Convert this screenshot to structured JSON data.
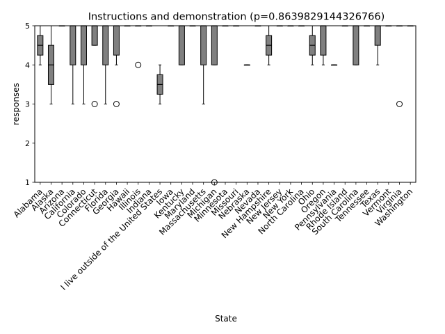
{
  "chart_data": {
    "type": "box",
    "title": "Instructions and demonstration (p=0.8639829144326766)",
    "xlabel": "State",
    "ylabel": "responses",
    "ylim": [
      1,
      5
    ],
    "yticks": [
      "1",
      "2",
      "3",
      "4",
      "5"
    ],
    "box_color": "#808080",
    "median_color": "#000000",
    "grid": false,
    "categories": [
      "Alabama",
      "Alaska",
      "Arizona",
      "California",
      "Colorado",
      "Connecticut",
      "Florida",
      "Georgia",
      "Hawaii",
      "Illinois",
      "Indiana",
      "I live outside of the United States",
      "Iowa",
      "Kentucky",
      "Maryland",
      "Massachusetts",
      "Michigan",
      "Minnesota",
      "Missouri",
      "Nebraska",
      "Nevada",
      "New Hampshire",
      "New Jersey",
      "New York",
      "North Carolina",
      "Ohio",
      "Oregon",
      "Pennsylvania",
      "Rhode Island",
      "South Carolina",
      "Tennessee",
      "Texas",
      "Vermont",
      "Virginia",
      "Washington"
    ],
    "boxes": [
      {
        "q1": 4.25,
        "med": 4.5,
        "q3": 4.75,
        "wlo": 4,
        "whi": 5,
        "fliers": []
      },
      {
        "q1": 3.5,
        "med": 4,
        "q3": 4.5,
        "wlo": 3,
        "whi": 5,
        "fliers": []
      },
      {
        "q1": 5,
        "med": 5,
        "q3": 5,
        "wlo": 5,
        "whi": 5,
        "fliers": []
      },
      {
        "q1": 4,
        "med": 5,
        "q3": 5,
        "wlo": 3,
        "whi": 5,
        "fliers": []
      },
      {
        "q1": 4,
        "med": 5,
        "q3": 5,
        "wlo": 3,
        "whi": 5,
        "fliers": []
      },
      {
        "q1": 4.5,
        "med": 5,
        "q3": 5,
        "wlo": 4.5,
        "whi": 5,
        "fliers": [
          3
        ]
      },
      {
        "q1": 4,
        "med": 5,
        "q3": 5,
        "wlo": 3,
        "whi": 5,
        "fliers": []
      },
      {
        "q1": 4.25,
        "med": 5,
        "q3": 5,
        "wlo": 4,
        "whi": 5,
        "fliers": [
          3
        ]
      },
      {
        "q1": 5,
        "med": 5,
        "q3": 5,
        "wlo": 5,
        "whi": 5,
        "fliers": []
      },
      {
        "q1": 5,
        "med": 5,
        "q3": 5,
        "wlo": 5,
        "whi": 5,
        "fliers": [
          4
        ]
      },
      {
        "q1": 5,
        "med": 5,
        "q3": 5,
        "wlo": 5,
        "whi": 5,
        "fliers": []
      },
      {
        "q1": 3.25,
        "med": 3.5,
        "q3": 3.75,
        "wlo": 3,
        "whi": 4,
        "fliers": []
      },
      {
        "q1": 5,
        "med": 5,
        "q3": 5,
        "wlo": 5,
        "whi": 5,
        "fliers": []
      },
      {
        "q1": 4,
        "med": 5,
        "q3": 5,
        "wlo": 4,
        "whi": 5,
        "fliers": []
      },
      {
        "q1": 5,
        "med": 5,
        "q3": 5,
        "wlo": 5,
        "whi": 5,
        "fliers": []
      },
      {
        "q1": 4,
        "med": 5,
        "q3": 5,
        "wlo": 3,
        "whi": 5,
        "fliers": []
      },
      {
        "q1": 4,
        "med": 5,
        "q3": 5,
        "wlo": 4,
        "whi": 5,
        "fliers": [
          1
        ]
      },
      {
        "q1": 5,
        "med": 5,
        "q3": 5,
        "wlo": 5,
        "whi": 5,
        "fliers": []
      },
      {
        "q1": 5,
        "med": 5,
        "q3": 5,
        "wlo": 5,
        "whi": 5,
        "fliers": []
      },
      {
        "q1": 4,
        "med": 4,
        "q3": 4,
        "wlo": 4,
        "whi": 4,
        "fliers": []
      },
      {
        "q1": 5,
        "med": 5,
        "q3": 5,
        "wlo": 5,
        "whi": 5,
        "fliers": []
      },
      {
        "q1": 4.25,
        "med": 4.5,
        "q3": 4.75,
        "wlo": 4,
        "whi": 5,
        "fliers": []
      },
      {
        "q1": 5,
        "med": 5,
        "q3": 5,
        "wlo": 5,
        "whi": 5,
        "fliers": []
      },
      {
        "q1": 5,
        "med": 5,
        "q3": 5,
        "wlo": 5,
        "whi": 5,
        "fliers": []
      },
      {
        "q1": 5,
        "med": 5,
        "q3": 5,
        "wlo": 5,
        "whi": 5,
        "fliers": []
      },
      {
        "q1": 4.25,
        "med": 4.5,
        "q3": 4.75,
        "wlo": 4,
        "whi": 5,
        "fliers": []
      },
      {
        "q1": 4.25,
        "med": 5,
        "q3": 5,
        "wlo": 4,
        "whi": 5,
        "fliers": []
      },
      {
        "q1": 4,
        "med": 4,
        "q3": 4,
        "wlo": 4,
        "whi": 4,
        "fliers": []
      },
      {
        "q1": 5,
        "med": 5,
        "q3": 5,
        "wlo": 5,
        "whi": 5,
        "fliers": []
      },
      {
        "q1": 4,
        "med": 5,
        "q3": 5,
        "wlo": 4,
        "whi": 5,
        "fliers": []
      },
      {
        "q1": 5,
        "med": 5,
        "q3": 5,
        "wlo": 5,
        "whi": 5,
        "fliers": []
      },
      {
        "q1": 4.5,
        "med": 5,
        "q3": 5,
        "wlo": 4,
        "whi": 5,
        "fliers": []
      },
      {
        "q1": 5,
        "med": 5,
        "q3": 5,
        "wlo": 5,
        "whi": 5,
        "fliers": []
      },
      {
        "q1": 5,
        "med": 5,
        "q3": 5,
        "wlo": 5,
        "whi": 5,
        "fliers": [
          3
        ]
      },
      {
        "q1": 5,
        "med": 5,
        "q3": 5,
        "wlo": 5,
        "whi": 5,
        "fliers": []
      }
    ]
  }
}
